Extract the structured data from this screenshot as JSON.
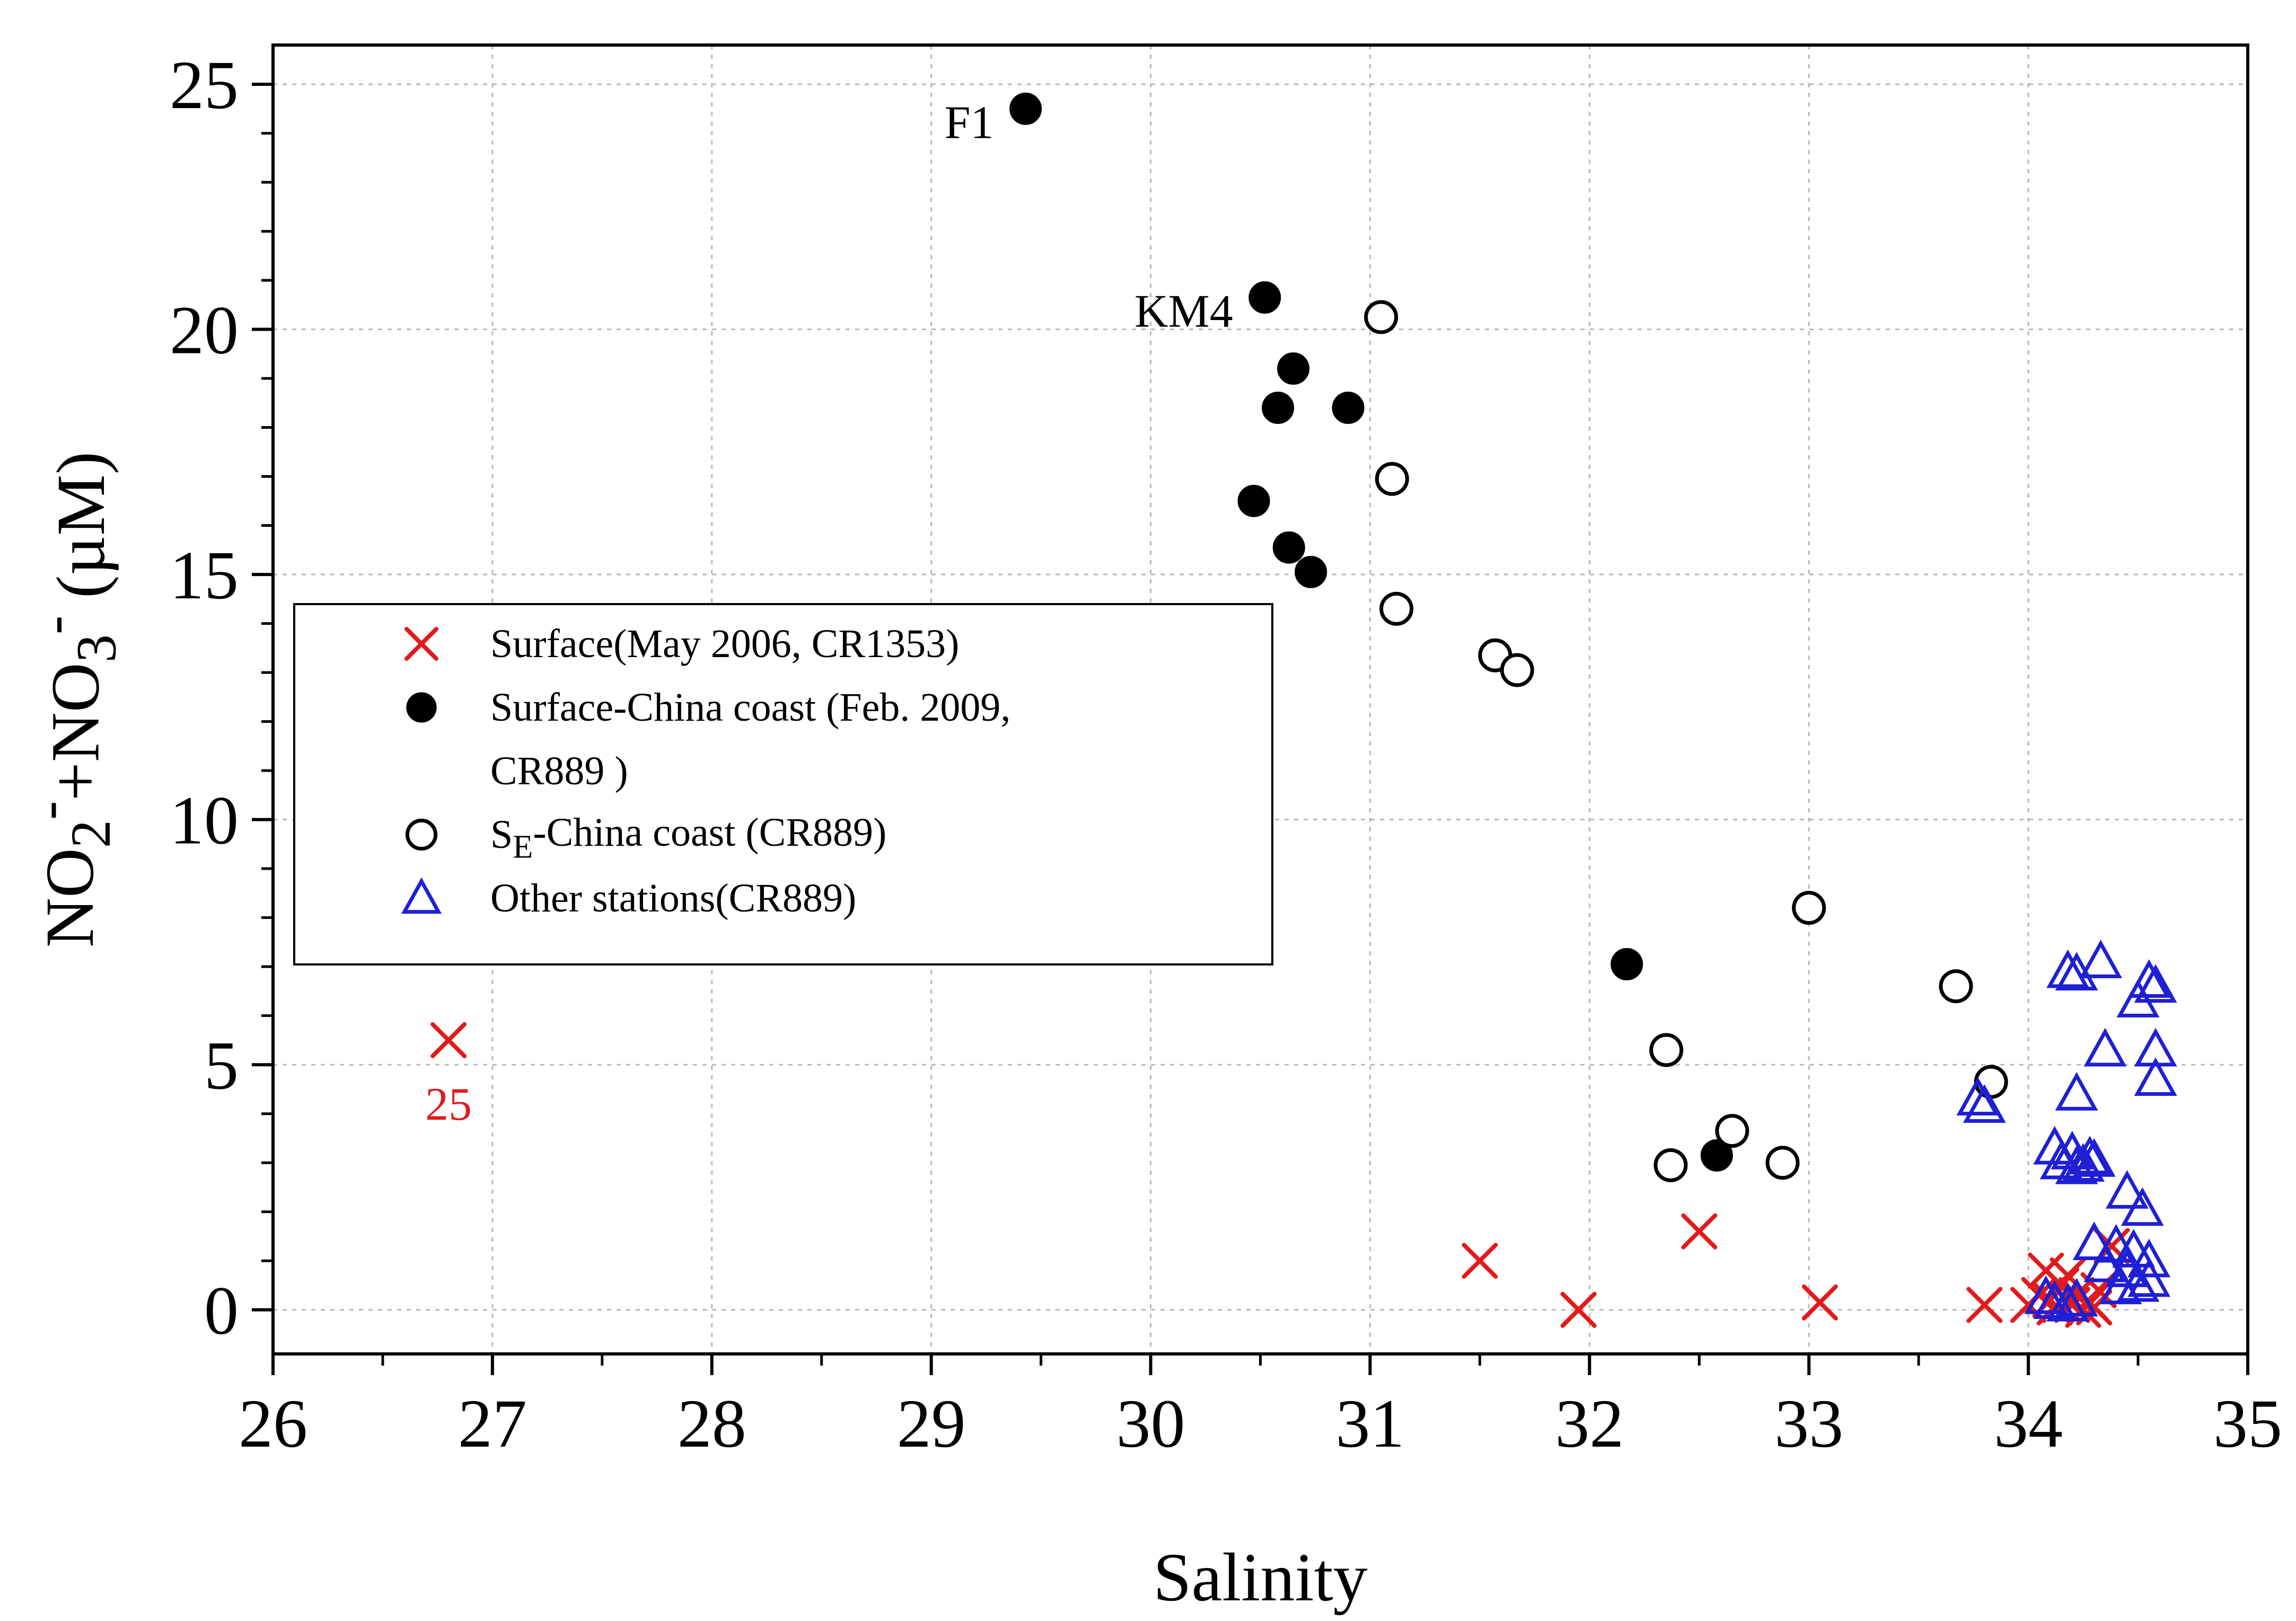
{
  "chart_data": {
    "type": "scatter",
    "title": "",
    "xlabel": "Salinity",
    "ylabel": {
      "parts": [
        {
          "text": "NO",
          "shift": "none"
        },
        {
          "text": "2",
          "shift": "sub"
        },
        {
          "text": "-",
          "shift": "super"
        },
        {
          "text": "+NO",
          "shift": "none"
        },
        {
          "text": "3",
          "shift": "sub"
        },
        {
          "text": "-",
          "shift": "super"
        },
        {
          "text": " (µM)",
          "shift": "none"
        }
      ]
    },
    "xlim": [
      26,
      35
    ],
    "ylim": [
      -0.9,
      25.8
    ],
    "xticks": [
      26,
      27,
      28,
      29,
      30,
      31,
      32,
      33,
      34,
      35
    ],
    "yticks": [
      0,
      5,
      10,
      15,
      20,
      25
    ],
    "grid": true,
    "legend_position": "middle-left",
    "series": [
      {
        "name": "Surface(May 2006, CR1353)",
        "marker": "x",
        "color": "#e31a1c",
        "points": [
          [
            26.8,
            5.5
          ],
          [
            31.5,
            1.0
          ],
          [
            31.95,
            0.0
          ],
          [
            32.5,
            1.6
          ],
          [
            33.05,
            0.15
          ],
          [
            33.8,
            0.1
          ],
          [
            34.0,
            0.1
          ],
          [
            34.05,
            0.3
          ],
          [
            34.08,
            0.8
          ],
          [
            34.1,
            0.2
          ],
          [
            34.12,
            0.05
          ],
          [
            34.15,
            0.5
          ],
          [
            34.18,
            0.7
          ],
          [
            34.2,
            0.1
          ],
          [
            34.22,
            0.3
          ],
          [
            34.25,
            0.0
          ],
          [
            34.28,
            0.15
          ],
          [
            34.3,
            0.05
          ],
          [
            34.32,
            0.4
          ],
          [
            34.38,
            1.3
          ]
        ]
      },
      {
        "name": "Surface-China coast (Feb. 2009, CR889 )",
        "marker": "filled-circle",
        "color": "#000000",
        "points": [
          [
            29.43,
            24.5
          ],
          [
            30.52,
            20.65
          ],
          [
            30.65,
            19.2
          ],
          [
            30.58,
            18.4
          ],
          [
            30.9,
            18.4
          ],
          [
            30.47,
            16.5
          ],
          [
            30.63,
            15.55
          ],
          [
            30.73,
            15.05
          ],
          [
            32.17,
            7.05
          ],
          [
            32.58,
            3.15
          ]
        ]
      },
      {
        "name": "SE-China coast (CR889)",
        "marker": "open-circle",
        "color": "#000000",
        "points": [
          [
            31.05,
            20.25
          ],
          [
            31.1,
            16.95
          ],
          [
            31.12,
            14.3
          ],
          [
            31.57,
            13.35
          ],
          [
            31.67,
            13.05
          ],
          [
            33.0,
            8.2
          ],
          [
            33.67,
            6.6
          ],
          [
            32.35,
            5.3
          ],
          [
            33.83,
            4.65
          ],
          [
            32.65,
            3.65
          ],
          [
            32.37,
            2.95
          ],
          [
            32.88,
            3.0
          ]
        ]
      },
      {
        "name": "Other stations(CR889)",
        "marker": "open-triangle",
        "color": "#1f1fd6",
        "points": [
          [
            34.18,
            6.9
          ],
          [
            34.22,
            6.85
          ],
          [
            34.33,
            7.1
          ],
          [
            34.55,
            6.7
          ],
          [
            34.58,
            6.6
          ],
          [
            34.5,
            6.3
          ],
          [
            34.58,
            5.3
          ],
          [
            34.35,
            5.3
          ],
          [
            34.58,
            4.7
          ],
          [
            33.77,
            4.3
          ],
          [
            33.8,
            4.15
          ],
          [
            34.22,
            4.4
          ],
          [
            34.12,
            3.3
          ],
          [
            34.2,
            3.2
          ],
          [
            34.28,
            3.1
          ],
          [
            34.15,
            3.0
          ],
          [
            34.25,
            2.95
          ],
          [
            34.22,
            2.9
          ],
          [
            34.3,
            3.05
          ],
          [
            34.45,
            2.4
          ],
          [
            34.52,
            2.05
          ],
          [
            34.3,
            1.35
          ],
          [
            34.4,
            1.3
          ],
          [
            34.48,
            1.2
          ],
          [
            34.55,
            1.0
          ],
          [
            34.35,
            0.9
          ],
          [
            34.45,
            0.8
          ],
          [
            34.55,
            0.6
          ],
          [
            34.5,
            0.5
          ],
          [
            34.42,
            0.45
          ],
          [
            34.08,
            0.25
          ],
          [
            34.12,
            0.15
          ],
          [
            34.18,
            0.1
          ],
          [
            34.22,
            0.2
          ]
        ]
      }
    ],
    "legend": [
      {
        "marker": "x",
        "color": "#e31a1c",
        "lines": [
          "Surface(May 2006, CR1353)"
        ]
      },
      {
        "marker": "filled-circle",
        "color": "#000000",
        "lines": [
          "Surface-China coast (Feb. 2009,",
          "CR889 )"
        ]
      },
      {
        "marker": "open-circle",
        "color": "#000000",
        "lines": [
          {
            "parts": [
              {
                "text": "S",
                "shift": "none"
              },
              {
                "text": "E",
                "shift": "sub"
              },
              {
                "text": "-China coast (CR889)",
                "shift": "none"
              }
            ]
          }
        ]
      },
      {
        "marker": "open-triangle",
        "color": "#1f1fd6",
        "lines": [
          "Other stations(CR889)"
        ]
      }
    ],
    "annotations": [
      {
        "text": "F1",
        "x": 29.43,
        "y": 24.5,
        "color": "#000000",
        "anchor": "left-of"
      },
      {
        "text": "KM4",
        "x": 30.52,
        "y": 20.65,
        "color": "#000000",
        "anchor": "left-of"
      },
      {
        "text": "25",
        "x": 26.8,
        "y": 5.5,
        "color": "#e31a1c",
        "anchor": "below"
      }
    ]
  }
}
